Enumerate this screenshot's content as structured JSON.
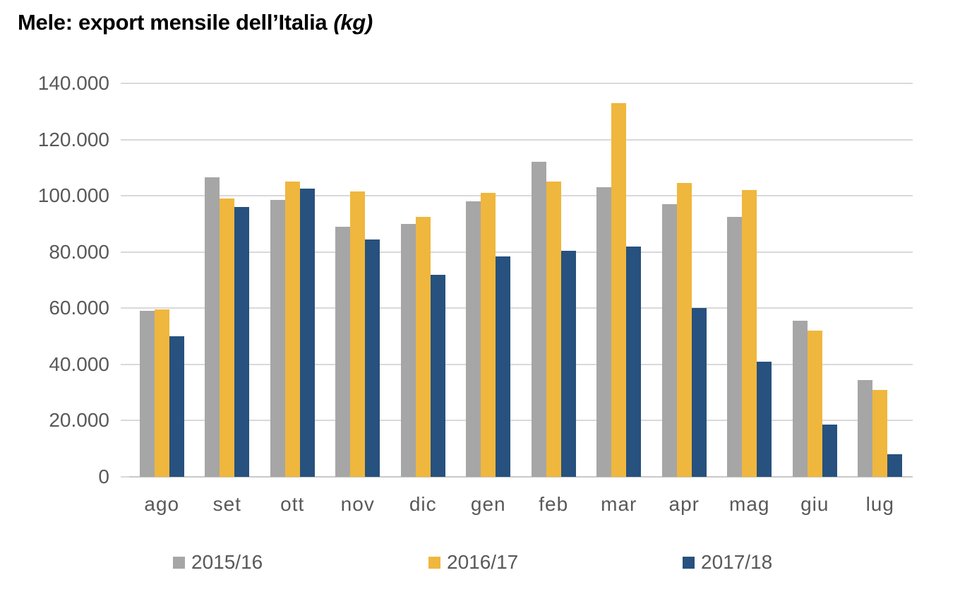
{
  "title": {
    "main": "Mele: export mensile dell’Italia",
    "unit": "(kg)"
  },
  "chart_data": {
    "type": "bar",
    "title": "Mele: export mensile dell’Italia (kg)",
    "xlabel": "",
    "ylabel": "",
    "categories": [
      "ago",
      "set",
      "ott",
      "nov",
      "dic",
      "gen",
      "feb",
      "mar",
      "apr",
      "mag",
      "giu",
      "lug"
    ],
    "series": [
      {
        "name": "2015/16",
        "color": "#A6A6A6",
        "values": [
          59000,
          106500,
          98500,
          89000,
          90000,
          98000,
          112000,
          103000,
          97000,
          92500,
          55500,
          34500
        ]
      },
      {
        "name": "2016/17",
        "color": "#EFB73D",
        "values": [
          59500,
          99000,
          105000,
          101500,
          92500,
          101000,
          105000,
          133000,
          104500,
          102000,
          52000,
          31000
        ]
      },
      {
        "name": "2017/18",
        "color": "#27517E",
        "values": [
          50000,
          96000,
          102500,
          84500,
          72000,
          78500,
          80500,
          82000,
          60000,
          41000,
          18500,
          8000
        ]
      }
    ],
    "ylim": [
      0,
      140000
    ],
    "ytick_step": 20000,
    "ytick_labels": [
      "0",
      "20.000",
      "40.000",
      "60.000",
      "80.000",
      "100.000",
      "120.000",
      "140.000"
    ],
    "grid": true,
    "legend_position": "bottom"
  },
  "colors": {
    "gridline": "#D9D9D9",
    "axis_line": "#C9C9C9",
    "axis_text": "#595959",
    "title_text": "#000000"
  }
}
